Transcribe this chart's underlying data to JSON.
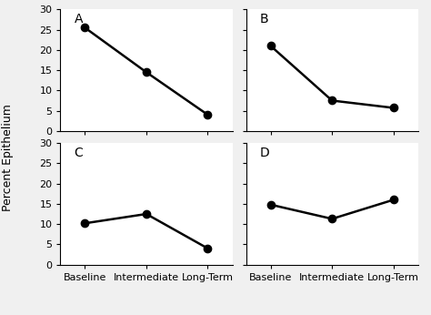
{
  "panels": [
    "A",
    "B",
    "C",
    "D"
  ],
  "x_labels": [
    "Baseline",
    "Intermediate",
    "Long-Term"
  ],
  "data": {
    "A": [
      25.5,
      14.5,
      4.0
    ],
    "B": [
      21.0,
      7.5,
      5.7
    ],
    "C": [
      10.2,
      12.5,
      4.0
    ],
    "D": [
      14.8,
      11.3,
      16.0
    ]
  },
  "ylim": [
    0,
    30
  ],
  "yticks": [
    0,
    5,
    10,
    15,
    20,
    25,
    30
  ],
  "line_color": "#000000",
  "marker": "o",
  "marker_size": 6,
  "marker_color": "#000000",
  "linewidth": 1.8,
  "ylabel": "Percent Epithelium",
  "panel_label_fontsize": 10,
  "tick_fontsize": 8,
  "ylabel_fontsize": 9,
  "xlabel_fontsize": 8,
  "background_color": "#f0f0f0",
  "axes_background": "#ffffff"
}
